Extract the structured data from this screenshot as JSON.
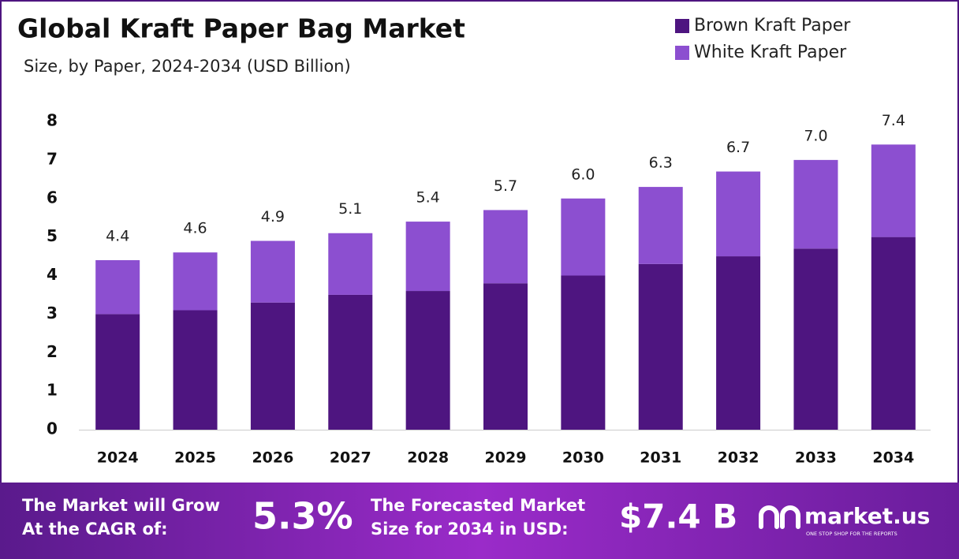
{
  "chart_data": {
    "type": "stacked-bar",
    "title": "Global Kraft Paper Bag Market",
    "subtitle": "Size, by Paper, 2024-2034 (USD Billion)",
    "categories": [
      "2024",
      "2025",
      "2026",
      "2027",
      "2028",
      "2029",
      "2030",
      "2031",
      "2032",
      "2033",
      "2034"
    ],
    "series": [
      {
        "name": "Brown Kraft Paper",
        "color": "#4e1580",
        "values": [
          3.0,
          3.1,
          3.3,
          3.5,
          3.6,
          3.8,
          4.0,
          4.3,
          4.5,
          4.7,
          5.0
        ]
      },
      {
        "name": "White Kraft Paper",
        "color": "#8c4fd0",
        "values": [
          1.4,
          1.5,
          1.6,
          1.6,
          1.8,
          1.9,
          2.0,
          2.0,
          2.2,
          2.3,
          2.4
        ]
      }
    ],
    "total_labels": [
      "4.4",
      "4.6",
      "4.9",
      "5.1",
      "5.4",
      "5.7",
      "6.0",
      "6.3",
      "6.7",
      "7.0",
      "7.4"
    ],
    "ylim": [
      0,
      8
    ],
    "yticks": [
      0,
      1,
      2,
      3,
      4,
      5,
      6,
      7,
      8
    ],
    "grid": false,
    "legend": "top-right"
  },
  "footer": {
    "cagr_label": [
      "The Market will Grow",
      "At the CAGR of:"
    ],
    "cagr_value": "5.3%",
    "forecast_label": [
      "The Forecasted Market",
      "Size for 2034 in USD:"
    ],
    "forecast_value": "$7.4 B",
    "brand": "market.us",
    "tagline": "ONE STOP SHOP FOR THE REPORTS"
  }
}
